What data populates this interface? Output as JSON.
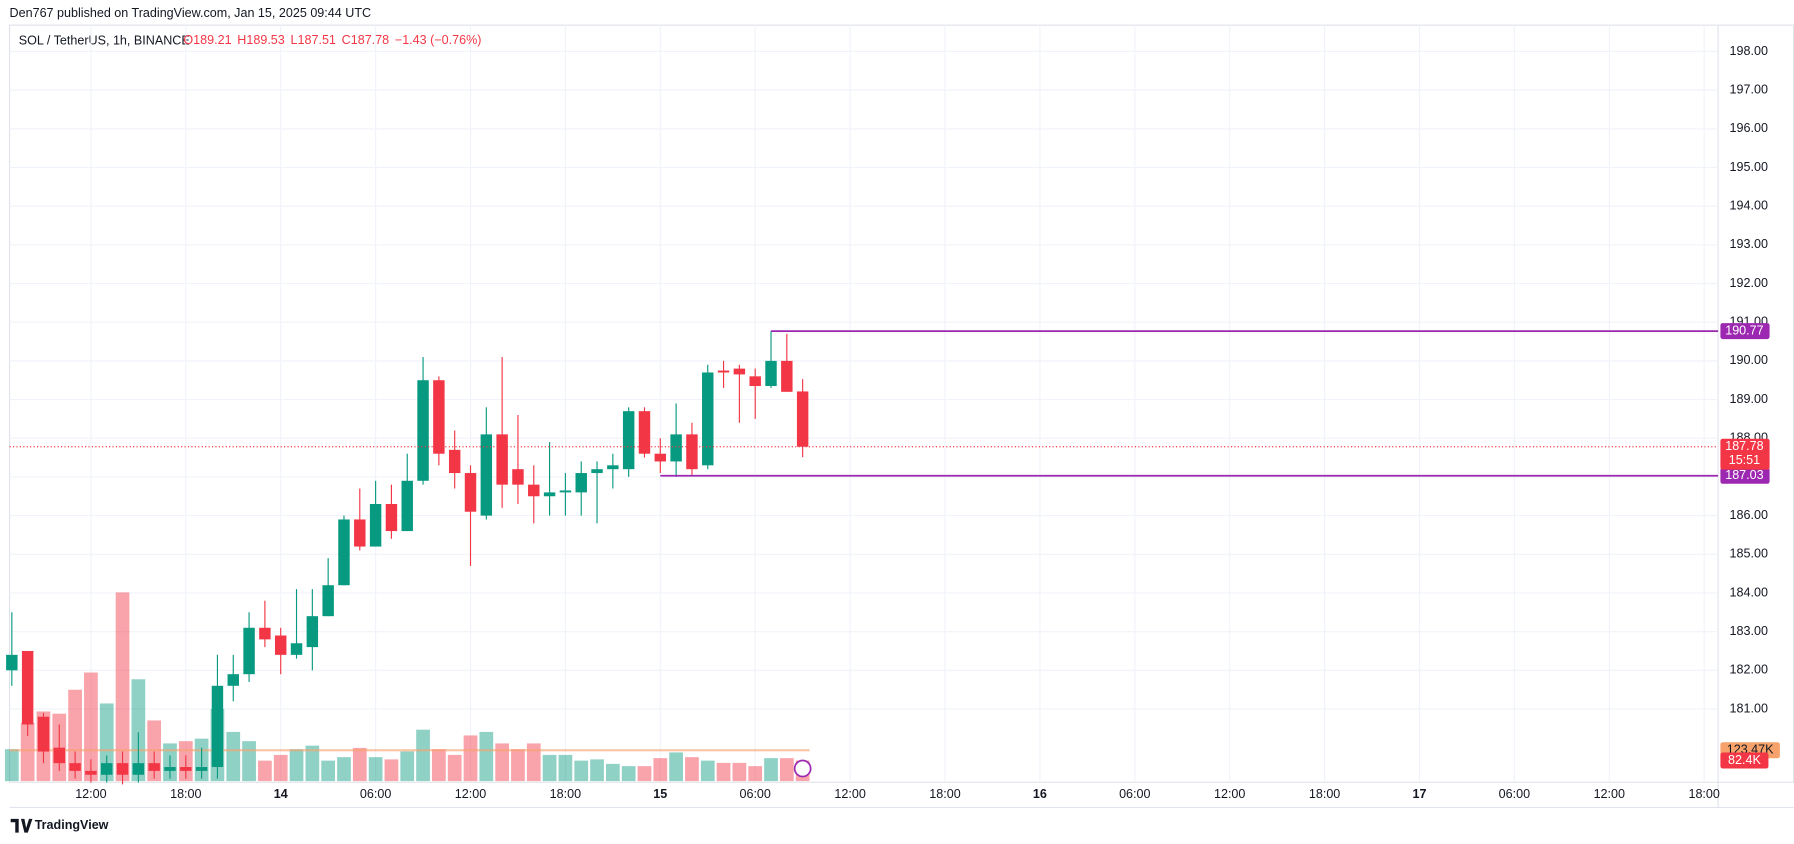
{
  "header": {
    "publisher": "Den767 published on TradingView.com, Jan 15, 2025 09:44 UTC",
    "footer": "TradingView"
  },
  "chart_data": {
    "type": "candlestick",
    "title": "SOL / TetherUS, 1h, BINANCE",
    "legend_values": [
      "O189.21",
      "H189.53",
      "L187.51",
      "C187.78",
      "−1.43 (−0.76%)"
    ],
    "open": [
      182.0,
      182.5,
      180.8,
      180.0,
      179.6,
      179.4,
      179.3,
      179.6,
      179.3,
      179.6,
      179.4,
      179.5,
      179.4,
      179.5,
      181.6,
      181.9,
      183.1,
      182.9,
      182.4,
      182.6,
      183.4,
      184.2,
      185.9,
      185.2,
      186.3,
      185.6,
      186.9,
      189.5,
      187.7,
      187.1,
      186.0,
      188.1,
      187.2,
      186.8,
      186.5,
      186.6,
      186.6,
      187.1,
      187.2,
      187.2,
      188.7,
      187.6,
      187.4,
      188.1,
      187.3,
      189.75,
      189.8,
      189.6,
      189.35,
      190.0,
      189.21
    ],
    "high": [
      183.5,
      182.5,
      180.9,
      180.6,
      179.9,
      179.7,
      179.8,
      179.9,
      180.4,
      179.9,
      179.8,
      179.8,
      180.0,
      182.4,
      182.4,
      183.5,
      183.8,
      183.1,
      184.1,
      184.1,
      184.9,
      186.0,
      186.7,
      186.9,
      186.8,
      187.6,
      190.1,
      189.6,
      188.2,
      187.3,
      188.8,
      190.1,
      188.6,
      187.3,
      187.9,
      187.1,
      187.4,
      187.4,
      187.6,
      188.8,
      188.8,
      188.0,
      188.9,
      188.4,
      189.9,
      190.0,
      189.9,
      189.8,
      190.77,
      190.7,
      189.53
    ],
    "low": [
      181.6,
      180.3,
      179.6,
      179.4,
      179.2,
      179.1,
      179.1,
      179.05,
      179.1,
      179.2,
      179.2,
      179.2,
      179.2,
      179.2,
      181.2,
      181.7,
      182.6,
      181.9,
      182.3,
      182.0,
      183.4,
      184.2,
      185.1,
      185.2,
      185.4,
      185.6,
      186.8,
      187.3,
      186.7,
      184.7,
      185.9,
      186.2,
      186.3,
      185.8,
      186.0,
      186.0,
      186.0,
      185.8,
      186.7,
      187.0,
      187.5,
      187.1,
      187.0,
      187.03,
      187.2,
      189.3,
      188.4,
      188.5,
      189.3,
      189.2,
      187.51
    ],
    "close": [
      182.4,
      180.6,
      179.9,
      179.6,
      179.4,
      179.3,
      179.6,
      179.3,
      179.6,
      179.4,
      179.5,
      179.4,
      179.5,
      181.6,
      181.9,
      183.1,
      182.8,
      182.4,
      182.7,
      183.4,
      184.2,
      185.9,
      185.2,
      186.3,
      185.6,
      186.9,
      189.5,
      187.6,
      187.1,
      186.1,
      188.1,
      186.8,
      186.8,
      186.5,
      186.6,
      186.65,
      187.1,
      187.2,
      187.3,
      188.7,
      187.6,
      187.4,
      188.1,
      187.2,
      189.7,
      189.7,
      189.65,
      189.35,
      190.0,
      189.2,
      187.78
    ],
    "volume": [
      128000,
      234000,
      279000,
      270000,
      366000,
      435000,
      311000,
      756000,
      408000,
      243000,
      151000,
      160000,
      170000,
      289000,
      197000,
      160000,
      82000,
      105000,
      128000,
      142000,
      82000,
      96000,
      133000,
      96000,
      87000,
      119000,
      206000,
      128000,
      105000,
      183000,
      197000,
      151000,
      128000,
      151000,
      105000,
      105000,
      82000,
      87000,
      69000,
      60000,
      60000,
      92000,
      115000,
      96000,
      82000,
      73000,
      73000,
      60000,
      92000,
      92000,
      82400
    ],
    "last_volume_label": "82.4K",
    "volume_ma": {
      "value": 123470,
      "label": "123.47K"
    },
    "last_price_label": "187.78",
    "countdown": "15:51",
    "levels": [
      {
        "value": 190.77,
        "label": "190.77"
      },
      {
        "value": 187.03,
        "label": "187.03"
      }
    ],
    "ylim": [
      179,
      198.7
    ],
    "yticks": [
      {
        "value": 181,
        "label": "181.00"
      },
      {
        "value": 182,
        "label": "182.00"
      },
      {
        "value": 183,
        "label": "183.00"
      },
      {
        "value": 184,
        "label": "184.00"
      },
      {
        "value": 185,
        "label": "185.00"
      },
      {
        "value": 186,
        "label": "186.00"
      },
      {
        "value": 187,
        "label": "187.00"
      },
      {
        "value": 188,
        "label": "188.00"
      },
      {
        "value": 189,
        "label": "189.00"
      },
      {
        "value": 190,
        "label": "190.00"
      },
      {
        "value": 191,
        "label": "191.00"
      },
      {
        "value": 192,
        "label": "192.00"
      },
      {
        "value": 193,
        "label": "193.00"
      },
      {
        "value": 194,
        "label": "194.00"
      },
      {
        "value": 195,
        "label": "195.00"
      },
      {
        "value": 196,
        "label": "196.00"
      },
      {
        "value": 197,
        "label": "197.00"
      },
      {
        "value": 198,
        "label": "198.00"
      }
    ],
    "xticks": [
      "12:00",
      "18:00",
      "14",
      "06:00",
      "12:00",
      "18:00",
      "15",
      "06:00",
      "12:00",
      "18:00",
      "16",
      "06:00",
      "12:00",
      "18:00",
      "17",
      "06:00",
      "12:00",
      "18:00"
    ],
    "colors": {
      "up": "#089981",
      "down": "#f23645",
      "level": "#9c27b0",
      "ma": "#f7a26a"
    }
  }
}
